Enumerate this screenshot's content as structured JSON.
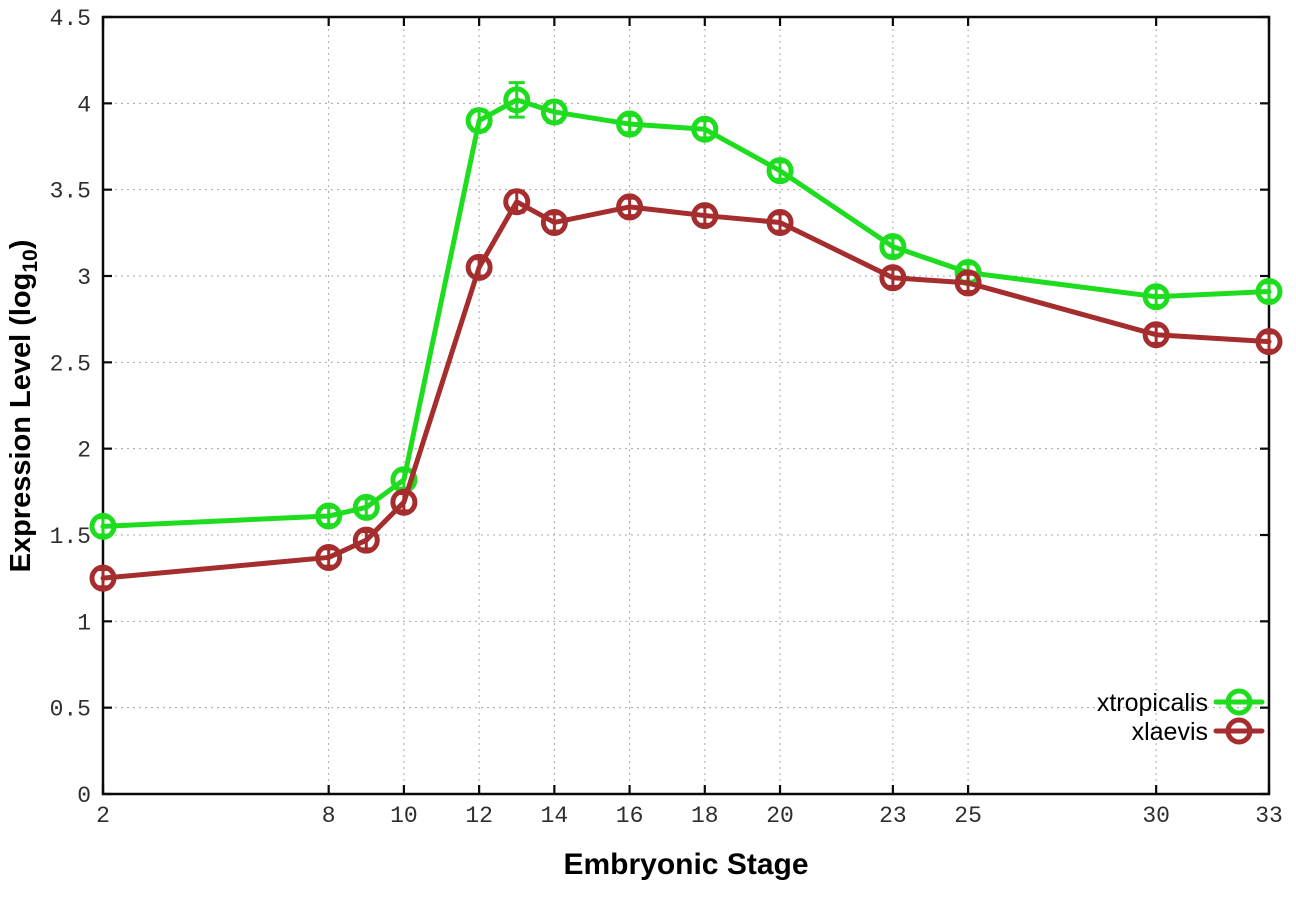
{
  "chart_data": {
    "type": "line",
    "title": "",
    "xlabel": "Embryonic Stage",
    "ylabel": {
      "prefix": "Expression Level (log",
      "subscript": "10",
      "suffix": ")"
    },
    "xlim": [
      2,
      33
    ],
    "ylim": [
      0,
      4.5
    ],
    "x_ticks": [
      2,
      8,
      10,
      12,
      14,
      16,
      18,
      20,
      23,
      25,
      30,
      33
    ],
    "y_ticks": [
      0,
      0.5,
      1,
      1.5,
      2,
      2.5,
      3,
      3.5,
      4,
      4.5
    ],
    "grid": true,
    "legend_position": "bottom-right",
    "background_color": "#ffffff",
    "axis_color": "#0a0a0a",
    "grid_color": "#a8a8a8",
    "marker_style": "open-circle-with-error-bars",
    "series": [
      {
        "name": "xtropicalis",
        "color": "#1edc1e",
        "x": [
          2,
          8,
          9,
          10,
          12,
          13,
          14,
          16,
          18,
          20,
          23,
          25,
          30,
          33
        ],
        "y": [
          1.55,
          1.61,
          1.66,
          1.82,
          3.9,
          4.02,
          3.95,
          3.88,
          3.85,
          3.61,
          3.17,
          3.02,
          2.88,
          2.91
        ],
        "yerr": [
          0.05,
          0.05,
          0.05,
          0.05,
          0.06,
          0.1,
          0.06,
          0.05,
          0.05,
          0.05,
          0.05,
          0.05,
          0.05,
          0.05
        ]
      },
      {
        "name": "xlaevis",
        "color": "#a52d2d",
        "x": [
          2,
          8,
          9,
          10,
          12,
          13,
          14,
          16,
          18,
          20,
          23,
          25,
          30,
          33
        ],
        "y": [
          1.25,
          1.37,
          1.47,
          1.69,
          3.05,
          3.43,
          3.31,
          3.4,
          3.35,
          3.31,
          2.99,
          2.96,
          2.66,
          2.62
        ],
        "yerr": [
          0.05,
          0.05,
          0.05,
          0.05,
          0.05,
          0.06,
          0.05,
          0.05,
          0.05,
          0.05,
          0.05,
          0.05,
          0.05,
          0.05
        ]
      }
    ]
  }
}
